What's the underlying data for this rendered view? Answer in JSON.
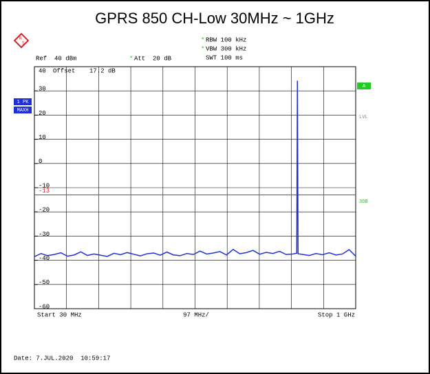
{
  "chart_data": {
    "type": "line",
    "title": "GPRS 850 CH-Low 30MHz ~ 1GHz",
    "marker": "*",
    "ref": "Ref  40 dBm",
    "att": "Att  20 dB",
    "rbw": "RBW 100 kHz",
    "vbw": "VBW 300 kHz",
    "swt": "SWT 100 ms",
    "offset": "Offset",
    "offset_value": "17.2 dB",
    "trace_labels": [
      "1 PK",
      "MAXH"
    ],
    "side_labels": [
      "A",
      "LVL",
      "3DB"
    ],
    "logo_letters": [
      "R",
      "S"
    ],
    "start": "Start 30 MHz",
    "span_div": "97 MHz/",
    "stop": "Stop 1 GHz",
    "date": "Date: 7.JUL.2020  10:59:17",
    "xlim": [
      30,
      1000
    ],
    "xticks": [
      30,
      127,
      224,
      321,
      418,
      515,
      612,
      709,
      806,
      903,
      1000
    ],
    "ylim": [
      -60,
      40
    ],
    "yticks": [
      40,
      30,
      20,
      10,
      0,
      -10,
      -20,
      -30,
      -40,
      -50,
      -60
    ],
    "limit_line": -13,
    "limit_color": "#e0201c",
    "grid": true,
    "series": [
      {
        "color": "#1f2fd8",
        "x": [
          30,
          50,
          70,
          90,
          110,
          130,
          150,
          170,
          190,
          210,
          230,
          250,
          270,
          290,
          310,
          330,
          350,
          370,
          390,
          410,
          430,
          450,
          470,
          490,
          510,
          530,
          550,
          570,
          590,
          610,
          630,
          650,
          670,
          690,
          710,
          730,
          750,
          770,
          790,
          810,
          822,
          824,
          826,
          840,
          860,
          880,
          900,
          920,
          940,
          960,
          980,
          1000
        ],
        "values": [
          -38.5,
          -37.2,
          -38.1,
          -37.6,
          -36.9,
          -38.3,
          -37.8,
          -36.5,
          -38.0,
          -37.4,
          -37.9,
          -38.4,
          -37.1,
          -37.7,
          -36.8,
          -37.5,
          -38.2,
          -37.3,
          -37.0,
          -37.9,
          -36.6,
          -37.8,
          -38.1,
          -37.2,
          -37.6,
          -36.2,
          -37.4,
          -37.0,
          -36.4,
          -37.8,
          -35.5,
          -37.3,
          -36.8,
          -35.9,
          -37.5,
          -36.7,
          -37.2,
          -36.3,
          -37.6,
          -37.4,
          -37.1,
          34.2,
          -37.3,
          -37.6,
          -38.0,
          -37.2,
          -37.7,
          -36.9,
          -37.8,
          -37.4,
          -35.6,
          -38.3
        ]
      }
    ]
  }
}
